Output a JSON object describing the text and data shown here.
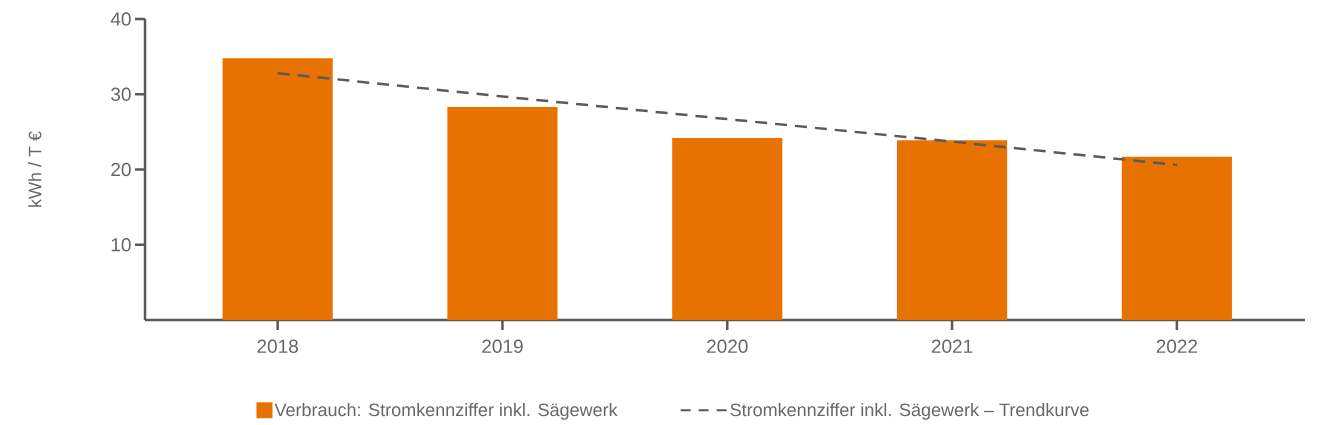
{
  "chart_data": {
    "type": "bar",
    "ylabel": "kWh / T €",
    "categories": [
      "2018",
      "2019",
      "2020",
      "2021",
      "2022"
    ],
    "series": [
      {
        "name": "Verbrauch: Stromkennziffer inkl. Sägewerk",
        "color": "#e87200",
        "values": [
          34.8,
          28.3,
          24.2,
          23.9,
          21.7
        ]
      },
      {
        "name": "Stromkennziffer inkl. Sägewerk – Trendkurve",
        "type": "line",
        "color": "#5a5a5a",
        "line_style": "dashed",
        "values": [
          32.8,
          29.7,
          26.7,
          23.7,
          20.6
        ]
      }
    ],
    "ylim": [
      0,
      40
    ],
    "yticks": [
      10,
      20,
      30,
      40
    ],
    "legend": "bottom"
  }
}
